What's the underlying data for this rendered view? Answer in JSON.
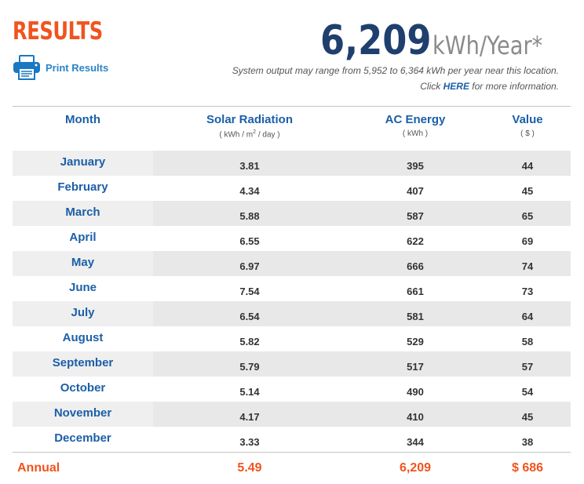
{
  "header": {
    "title": "RESULTS",
    "print_label": "Print Results",
    "annual_output": "6,209",
    "annual_unit": "kWh/Year*",
    "range_note": "System output may range from 5,952 to 6,364 kWh per year near this location.",
    "more_info_prefix": "Click ",
    "more_info_link": "HERE",
    "more_info_suffix": " for more information."
  },
  "table": {
    "columns": [
      {
        "label": "Month",
        "unit": ""
      },
      {
        "label": "Solar Radiation",
        "unit_prefix": "( kWh / m",
        "unit_sup": "2",
        "unit_suffix": " / day )"
      },
      {
        "label": "AC Energy",
        "unit": "( kWh )"
      },
      {
        "label": "Value",
        "unit": "( $ )"
      }
    ],
    "rows": [
      {
        "month": "January",
        "solar": "3.81",
        "ac": "395",
        "value": "44"
      },
      {
        "month": "February",
        "solar": "4.34",
        "ac": "407",
        "value": "45"
      },
      {
        "month": "March",
        "solar": "5.88",
        "ac": "587",
        "value": "65"
      },
      {
        "month": "April",
        "solar": "6.55",
        "ac": "622",
        "value": "69"
      },
      {
        "month": "May",
        "solar": "6.97",
        "ac": "666",
        "value": "74"
      },
      {
        "month": "June",
        "solar": "7.54",
        "ac": "661",
        "value": "73"
      },
      {
        "month": "July",
        "solar": "6.54",
        "ac": "581",
        "value": "64"
      },
      {
        "month": "August",
        "solar": "5.82",
        "ac": "529",
        "value": "58"
      },
      {
        "month": "September",
        "solar": "5.79",
        "ac": "517",
        "value": "57"
      },
      {
        "month": "October",
        "solar": "5.14",
        "ac": "490",
        "value": "54"
      },
      {
        "month": "November",
        "solar": "4.17",
        "ac": "410",
        "value": "45"
      },
      {
        "month": "December",
        "solar": "3.33",
        "ac": "344",
        "value": "38"
      }
    ],
    "annual": {
      "label": "Annual",
      "solar": "5.49",
      "ac": "6,209",
      "value": "$ 686"
    }
  },
  "colors": {
    "accent_orange": "#f0541e",
    "heading_blue": "#1b5fa8",
    "number_navy": "#1f3f6e",
    "link_blue": "#2b84c6"
  },
  "icons": {
    "print": "printer-icon"
  }
}
